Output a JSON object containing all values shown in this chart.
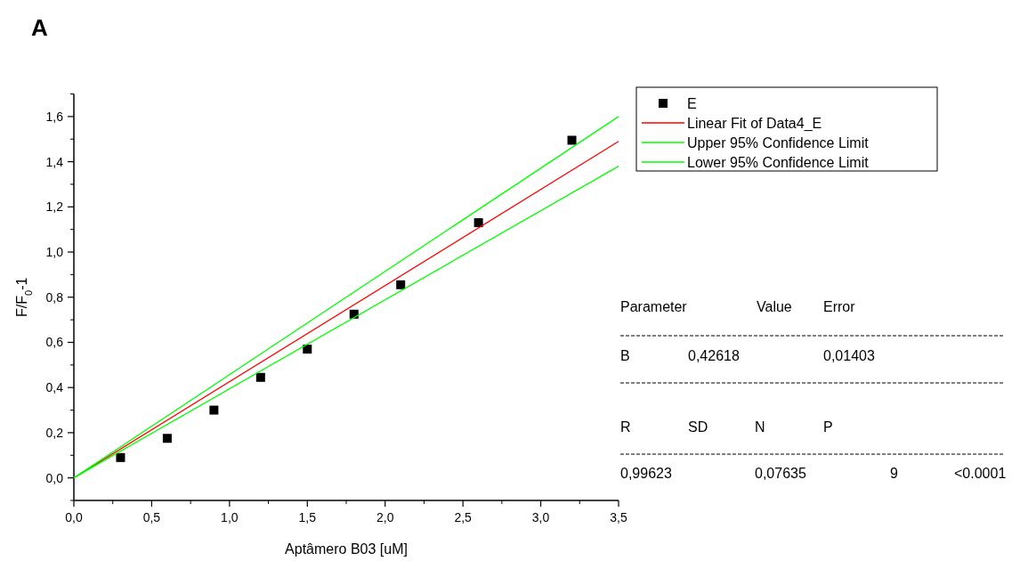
{
  "chart_data": {
    "type": "scatter",
    "title": "A",
    "xlabel": "Aptâmero B03 [uM]",
    "ylabel": "F/F$_{0}$-1",
    "xlim": [
      0,
      3.5
    ],
    "xticks": [
      {
        "value": 0,
        "label": "0,0"
      },
      {
        "value": 0.5,
        "label": "0,5"
      },
      {
        "value": 1,
        "label": "1,0"
      },
      {
        "value": 1.5,
        "label": "1,5"
      },
      {
        "value": 2,
        "label": "2,0"
      },
      {
        "value": 2.5,
        "label": "2,5"
      },
      {
        "value": 3,
        "label": "3,0"
      },
      {
        "value": 3.5,
        "label": "3,5"
      }
    ],
    "ylim": [
      -0.1,
      1.7
    ],
    "yticks": [
      {
        "value": 0,
        "label": "0,0"
      },
      {
        "value": 0.2,
        "label": "0,2"
      },
      {
        "value": 0.4,
        "label": "0,4"
      },
      {
        "value": 0.6,
        "label": "0,6"
      },
      {
        "value": 0.8,
        "label": "0,8"
      },
      {
        "value": 1,
        "label": "1,0"
      },
      {
        "value": 1.2,
        "label": "1,2"
      },
      {
        "value": 1.4,
        "label": "1,4"
      },
      {
        "value": 1.6,
        "label": "1,6"
      }
    ],
    "grid": false,
    "legend": "top right",
    "series": [
      {
        "name": "E",
        "marker": "square",
        "color": "#000000",
        "x": [
          0.3,
          0.6,
          0.9,
          1.2,
          1.5,
          1.8,
          2.1,
          2.6,
          3.2
        ],
        "values": [
          0.09,
          0.175,
          0.3,
          0.445,
          0.57,
          0.725,
          0.855,
          1.13,
          1.495
        ]
      },
      {
        "name": "Linear Fit of Data4_E",
        "type": "line",
        "marker": "none",
        "color": "#ff0000",
        "x": [
          0,
          3.5
        ],
        "values": [
          0,
          1.49
        ]
      },
      {
        "name": "Upper 95% Confidence Limit",
        "type": "line",
        "marker": "none",
        "color": "#00ff00",
        "x": [
          0,
          3.5
        ],
        "values": [
          0,
          1.6
        ]
      },
      {
        "name": "Lower 95% Confidence Limit",
        "type": "line",
        "marker": "none",
        "color": "#00ff00",
        "x": [
          0,
          3.5
        ],
        "values": [
          0,
          1.38
        ]
      }
    ],
    "annotations": [
      "Parameter",
      "Value",
      "Error",
      "B",
      "0,42618",
      "0,01403",
      "R",
      "SD",
      "N",
      "P",
      "0,99623",
      "0,07635",
      "9",
      "<0.0001"
    ]
  }
}
